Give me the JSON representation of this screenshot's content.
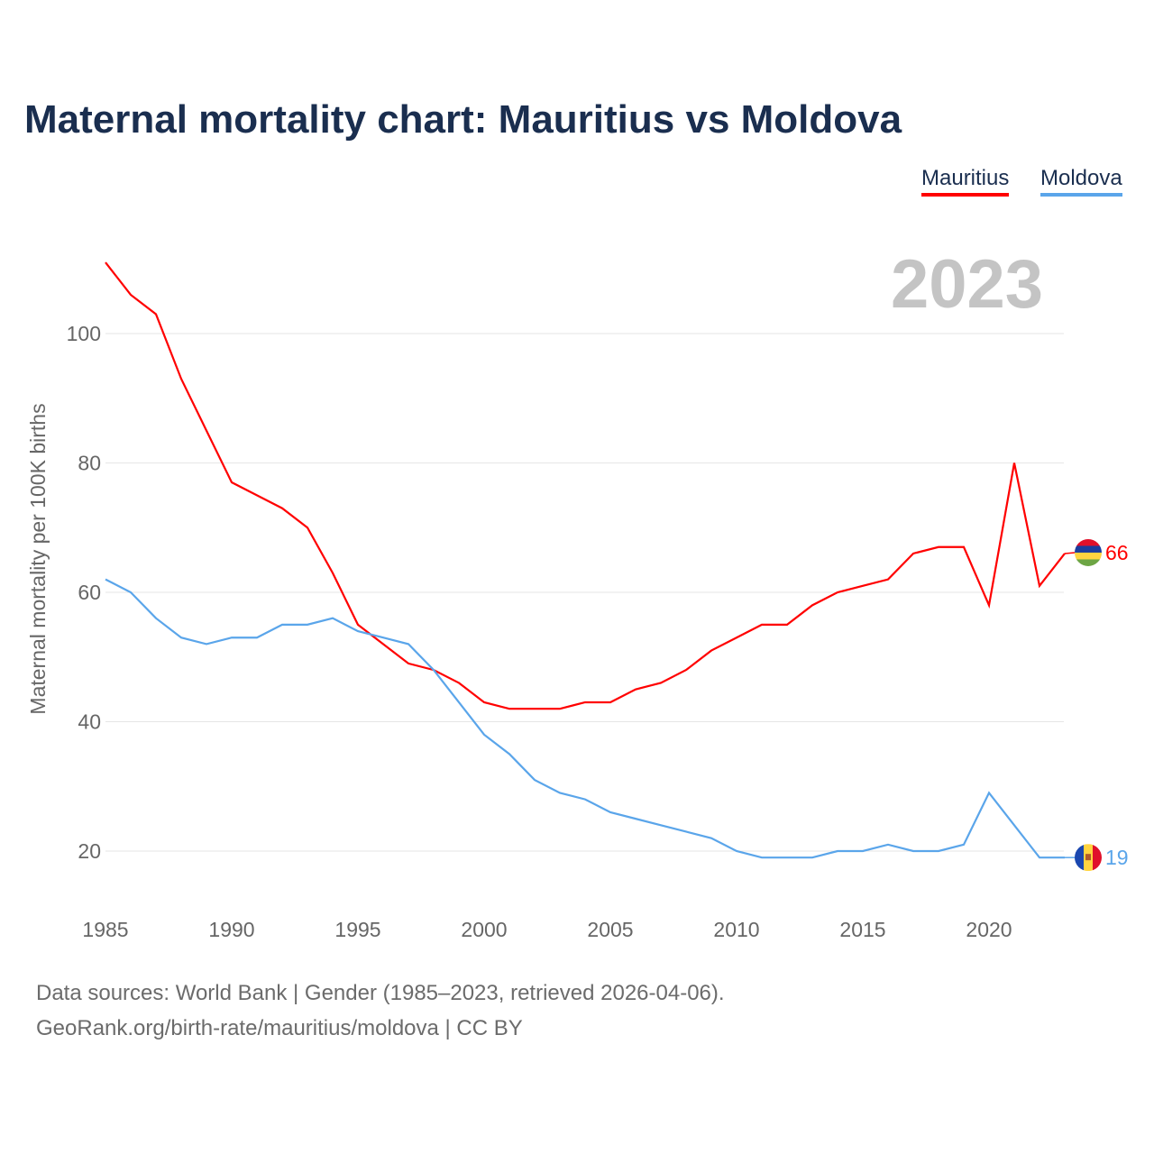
{
  "title": "Maternal mortality chart: Mauritius vs Moldova",
  "year_label": "2023",
  "legend": [
    "Mauritius",
    "Moldova"
  ],
  "footer": {
    "line1": "Data sources: World Bank | Gender (1985–2023, retrieved 2026-04-06).",
    "line2": "GeoRank.org/birth-rate/mauritius/moldova | CC BY"
  },
  "chart_data": {
    "type": "line",
    "title": "Maternal mortality chart: Mauritius vs Moldova",
    "xlabel": "",
    "ylabel": "Maternal mortality per 100K births",
    "xlim": [
      1985,
      2023
    ],
    "ylim": [
      12,
      112
    ],
    "xticks": [
      1985,
      1990,
      1995,
      2000,
      2005,
      2010,
      2015,
      2020
    ],
    "yticks": [
      20,
      40,
      60,
      80,
      100
    ],
    "grid": true,
    "legend_position": "top-right",
    "x": [
      1985,
      1986,
      1987,
      1988,
      1989,
      1990,
      1991,
      1992,
      1993,
      1994,
      1995,
      1996,
      1997,
      1998,
      1999,
      2000,
      2001,
      2002,
      2003,
      2004,
      2005,
      2006,
      2007,
      2008,
      2009,
      2010,
      2011,
      2012,
      2013,
      2014,
      2015,
      2016,
      2017,
      2018,
      2019,
      2020,
      2021,
      2022,
      2023
    ],
    "series": [
      {
        "name": "Mauritius",
        "color": "#ff0000",
        "end_label": "66",
        "values": [
          111,
          106,
          103,
          93,
          85,
          77,
          75,
          73,
          70,
          63,
          55,
          52,
          49,
          48,
          46,
          43,
          42,
          42,
          42,
          43,
          43,
          45,
          46,
          48,
          51,
          53,
          55,
          55,
          58,
          60,
          61,
          62,
          66,
          67,
          67,
          58,
          80,
          61,
          66
        ]
      },
      {
        "name": "Moldova",
        "color": "#5aa5ea",
        "end_label": "19",
        "values": [
          62,
          60,
          56,
          53,
          52,
          53,
          53,
          55,
          55,
          56,
          54,
          53,
          52,
          48,
          43,
          38,
          35,
          31,
          29,
          28,
          26,
          25,
          24,
          23,
          22,
          20,
          19,
          19,
          19,
          20,
          20,
          21,
          20,
          20,
          21,
          29,
          24,
          19,
          19
        ]
      }
    ]
  }
}
